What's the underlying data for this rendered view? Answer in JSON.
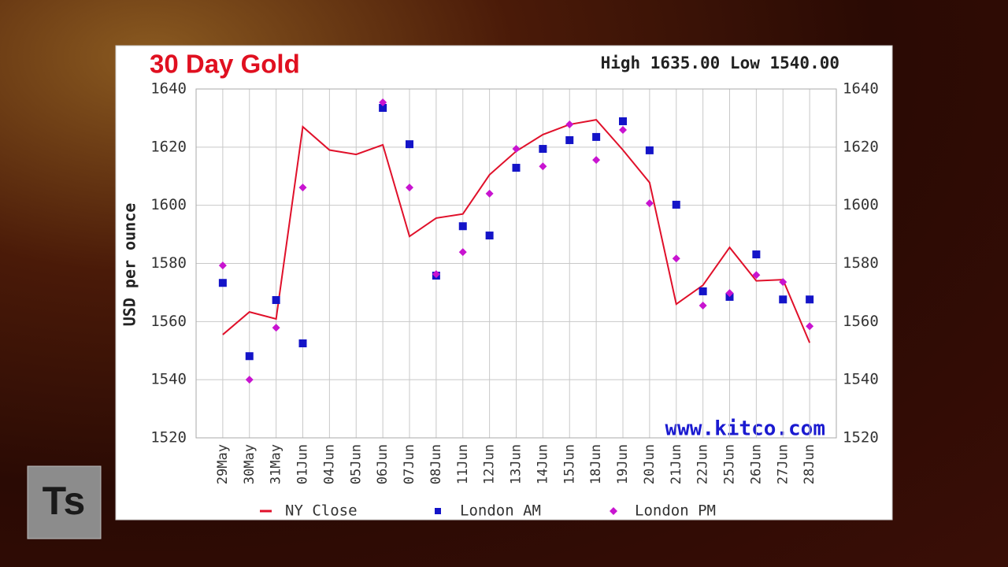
{
  "logo": "Ts",
  "chart_data": {
    "type": "line",
    "title": "30 Day Gold",
    "annotation": "High 1635.00 Low 1540.00",
    "y_label": "USD per ounce",
    "watermark": "www.kitco.com",
    "categories": [
      "29May",
      "30May",
      "31May",
      "01Jun",
      "04Jun",
      "05Jun",
      "06Jun",
      "07Jun",
      "08Jun",
      "11Jun",
      "12Jun",
      "13Jun",
      "14Jun",
      "15Jun",
      "18Jun",
      "19Jun",
      "20Jun",
      "21Jun",
      "22Jun",
      "25Jun",
      "26Jun",
      "27Jun",
      "28Jun"
    ],
    "series": [
      {
        "name": "NY Close",
        "color": "#e0102a",
        "marker": "line",
        "values": [
          1555.5,
          1563.3,
          1560.9,
          1627.0,
          1619.0,
          1617.5,
          1620.8,
          1589.3,
          1595.6,
          1597.0,
          1610.5,
          1618.6,
          1624.3,
          1627.8,
          1629.4,
          1619.0,
          1607.8,
          1566.0,
          1572.5,
          1585.5,
          1574.0,
          1574.4,
          1552.7
        ]
      },
      {
        "name": "London AM",
        "color": "#1414c8",
        "marker": "square",
        "values": [
          1573.3,
          1548.1,
          1567.4,
          1552.5,
          null,
          null,
          1633.5,
          1621.0,
          1575.8,
          1592.8,
          1589.6,
          1612.9,
          1619.4,
          1622.4,
          1623.5,
          1628.9,
          1618.9,
          1600.2,
          1570.4,
          1568.5,
          1583.1,
          1567.6,
          1567.6
        ]
      },
      {
        "name": "London PM",
        "color": "#c814d0",
        "marker": "diamond",
        "values": [
          1579.3,
          1540.0,
          1557.9,
          1606.1,
          null,
          null,
          1635.4,
          1606.1,
          1576.3,
          1583.9,
          1604.0,
          1619.4,
          1613.4,
          1627.8,
          1615.6,
          1625.9,
          1600.7,
          1581.7,
          1565.5,
          1569.8,
          1576.0,
          1573.6,
          1558.4
        ]
      }
    ],
    "ylim": [
      1520,
      1640
    ],
    "yticks": [
      1520,
      1540,
      1560,
      1580,
      1600,
      1620,
      1640
    ],
    "grid": true
  }
}
